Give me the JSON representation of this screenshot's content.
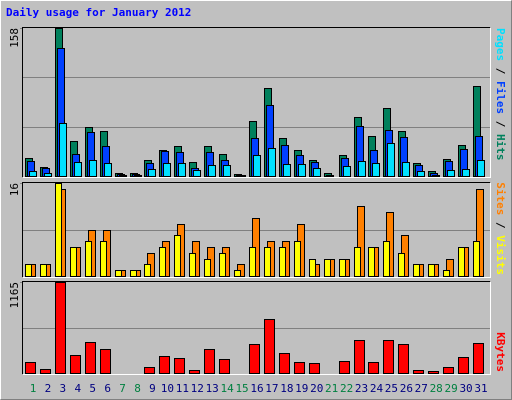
{
  "chart_data": [
    {
      "type": "bar",
      "title": "Daily usage for January 2012",
      "legend_separator": " / ",
      "ylim": [
        0,
        158
      ],
      "yticks": [
        158
      ],
      "grid": true,
      "series": [
        {
          "name": "Pages",
          "color": "#00e0ff",
          "values": [
            5,
            3,
            57,
            15,
            17,
            14,
            1,
            1,
            7,
            14,
            14,
            6,
            12,
            12,
            1,
            22,
            30,
            13,
            13,
            9,
            0,
            11,
            16,
            14,
            35,
            15,
            5,
            1,
            6,
            7,
            17
          ]
        },
        {
          "name": "Files",
          "color": "#0040ff",
          "values": [
            16,
            9,
            137,
            24,
            47,
            32,
            2,
            2,
            14,
            27,
            26,
            9,
            26,
            17,
            1,
            41,
            76,
            33,
            22,
            15,
            1,
            19,
            53,
            28,
            49,
            42,
            12,
            3,
            16,
            29,
            43
          ]
        },
        {
          "name": "Hits",
          "color": "#00805c",
          "values": [
            19,
            10,
            158,
            37,
            52,
            48,
            3,
            3,
            17,
            28,
            32,
            15,
            32,
            23,
            2,
            59,
            94,
            41,
            28,
            17,
            3,
            22,
            63,
            43,
            73,
            48,
            14,
            5,
            18,
            33,
            96
          ]
        }
      ]
    },
    {
      "type": "bar",
      "legend_separator": " / ",
      "ylim": [
        0,
        16
      ],
      "yticks": [
        16
      ],
      "grid": true,
      "series": [
        {
          "name": "Sites",
          "color": "#ff8000",
          "values": [
            2,
            2,
            15,
            5,
            8,
            8,
            1,
            1,
            4,
            6,
            9,
            6,
            5,
            5,
            2,
            10,
            6,
            6,
            9,
            2,
            3,
            3,
            12,
            5,
            11,
            7,
            2,
            2,
            3,
            5,
            15
          ]
        },
        {
          "name": "Visits",
          "color": "#ffff00",
          "values": [
            2,
            2,
            16,
            5,
            6,
            6,
            1,
            1,
            2,
            5,
            7,
            4,
            3,
            4,
            1,
            5,
            5,
            5,
            6,
            3,
            3,
            3,
            5,
            5,
            6,
            4,
            2,
            2,
            1,
            5,
            6
          ]
        }
      ]
    },
    {
      "type": "bar",
      "ylim": [
        0,
        1165
      ],
      "yticks": [
        1165
      ],
      "grid": true,
      "categories": [
        "1",
        "2",
        "3",
        "4",
        "5",
        "6",
        "7",
        "8",
        "9",
        "10",
        "11",
        "12",
        "13",
        "14",
        "15",
        "16",
        "17",
        "18",
        "19",
        "20",
        "21",
        "22",
        "23",
        "24",
        "25",
        "26",
        "27",
        "28",
        "29",
        "30",
        "31"
      ],
      "category_colors": [
        "#008040",
        "#000080",
        "#000080",
        "#000080",
        "#000080",
        "#000080",
        "#008040",
        "#008040",
        "#000080",
        "#000080",
        "#000080",
        "#000080",
        "#000080",
        "#008040",
        "#008040",
        "#000080",
        "#000080",
        "#000080",
        "#000080",
        "#000080",
        "#008040",
        "#008040",
        "#000080",
        "#000080",
        "#000080",
        "#000080",
        "#000080",
        "#008040",
        "#008040",
        "#000080",
        "#000080"
      ],
      "series": [
        {
          "name": "KBytes",
          "color": "#ff0000",
          "values": [
            144,
            52,
            1165,
            236,
            393,
            301,
            5,
            5,
            79,
            223,
            196,
            39,
            301,
            183,
            5,
            367,
            694,
            262,
            144,
            131,
            5,
            157,
            419,
            144,
            419,
            367,
            39,
            26,
            79,
            209,
            380
          ]
        }
      ]
    }
  ]
}
